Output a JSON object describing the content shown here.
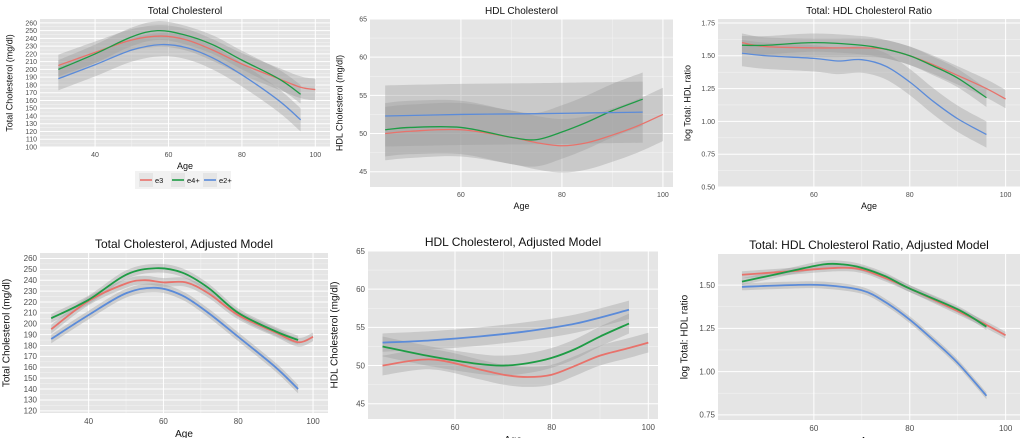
{
  "colors": {
    "panel_bg": "#E5E5E5",
    "grid_major": "#FFFFFF",
    "grid_minor": "#F2F2F2",
    "ribbon": "#9A9A9A",
    "tick_text": "#4D4D4D",
    "title_text": "#111111"
  },
  "legend": {
    "entries": [
      {
        "label": "e3",
        "color": "#E8726B"
      },
      {
        "label": "e4+",
        "color": "#1E9C45"
      },
      {
        "label": "e2+",
        "color": "#5B8BD9"
      }
    ]
  },
  "chart_data": [
    {
      "type": "line",
      "title": "Total Cholesterol",
      "xlabel": "Age",
      "ylabel": "Total Cholesterol (mg/dl)",
      "xlim": [
        25,
        104
      ],
      "ylim": [
        100,
        265
      ],
      "xticks": [
        40,
        60,
        80,
        100
      ],
      "yticks": [
        100,
        110,
        120,
        130,
        140,
        150,
        160,
        170,
        180,
        190,
        200,
        210,
        220,
        230,
        240,
        250,
        260
      ],
      "series": [
        {
          "name": "e3",
          "x": [
            30,
            40,
            50,
            58,
            65,
            72,
            80,
            90,
            96,
            100
          ],
          "values": [
            205,
            222,
            238,
            243,
            238,
            225,
            207,
            188,
            177,
            174
          ],
          "band": 14
        },
        {
          "name": "e4+",
          "x": [
            30,
            40,
            50,
            57,
            64,
            72,
            80,
            90,
            96
          ],
          "values": [
            200,
            220,
            242,
            250,
            245,
            232,
            212,
            188,
            168
          ],
          "band": 12
        },
        {
          "name": "e2+",
          "x": [
            30,
            40,
            50,
            58,
            65,
            72,
            80,
            90,
            96
          ],
          "values": [
            188,
            206,
            225,
            232,
            228,
            215,
            193,
            160,
            135
          ],
          "band": 15
        }
      ]
    },
    {
      "type": "line",
      "title": "HDL Cholesterol",
      "xlabel": "Age",
      "ylabel": "HDL Cholesterol (mg/dl)",
      "xlim": [
        42,
        102
      ],
      "ylim": [
        43,
        65
      ],
      "xticks": [
        60,
        80,
        100
      ],
      "yticks": [
        45,
        50,
        55,
        60,
        65
      ],
      "series": [
        {
          "name": "e3",
          "x": [
            45,
            50,
            60,
            70,
            75,
            80,
            85,
            90,
            95,
            100
          ],
          "values": [
            50,
            50.3,
            50.5,
            49.5,
            48.8,
            48.4,
            48.8,
            49.8,
            51,
            52.5
          ],
          "band": 3.5
        },
        {
          "name": "e4+",
          "x": [
            45,
            50,
            60,
            70,
            75,
            80,
            85,
            90,
            96
          ],
          "values": [
            50.5,
            50.8,
            50.8,
            49.5,
            49.2,
            50.2,
            51.5,
            53,
            54.5
          ],
          "band": 3.5
        },
        {
          "name": "e2+",
          "x": [
            45,
            60,
            75,
            85,
            96
          ],
          "values": [
            52.3,
            52.5,
            52.6,
            52.7,
            52.8
          ],
          "band": 4
        }
      ]
    },
    {
      "type": "line",
      "title": "Total: HDL Cholesterol Ratio",
      "xlabel": "Age",
      "ylabel": "log Total: HDL ratio",
      "xlim": [
        40,
        103
      ],
      "ylim": [
        0.5,
        1.78
      ],
      "xticks": [
        60,
        80,
        100
      ],
      "yticks": [
        0.5,
        0.75,
        1.0,
        1.25,
        1.5,
        1.75
      ],
      "ytick_labels": [
        "0.50",
        "0.75",
        "1.00",
        "1.25",
        "1.50",
        "1.75"
      ],
      "series": [
        {
          "name": "e3",
          "x": [
            45,
            50,
            60,
            70,
            75,
            80,
            85,
            90,
            96,
            100
          ],
          "values": [
            1.6,
            1.57,
            1.56,
            1.56,
            1.55,
            1.5,
            1.43,
            1.35,
            1.25,
            1.17
          ],
          "band": 0.07
        },
        {
          "name": "e4+",
          "x": [
            45,
            50,
            60,
            70,
            75,
            80,
            85,
            90,
            96
          ],
          "values": [
            1.58,
            1.58,
            1.6,
            1.58,
            1.55,
            1.5,
            1.42,
            1.33,
            1.18
          ],
          "band": 0.07
        },
        {
          "name": "e2+",
          "x": [
            45,
            50,
            60,
            65,
            70,
            75,
            80,
            85,
            90,
            96
          ],
          "values": [
            1.52,
            1.5,
            1.48,
            1.46,
            1.47,
            1.42,
            1.3,
            1.15,
            1.02,
            0.9
          ],
          "band": 0.1
        }
      ]
    },
    {
      "type": "line",
      "title": "Total Cholesterol, Adjusted Model",
      "xlabel": "Age",
      "ylabel": "Total Cholesterol (mg/dl)",
      "xlim": [
        27,
        104
      ],
      "ylim": [
        118,
        265
      ],
      "xticks": [
        40,
        60,
        80,
        100
      ],
      "yticks": [
        120,
        130,
        140,
        150,
        160,
        170,
        180,
        190,
        200,
        210,
        220,
        230,
        240,
        250,
        260
      ],
      "series": [
        {
          "name": "e3",
          "x": [
            30,
            40,
            50,
            55,
            60,
            66,
            72,
            80,
            90,
            96,
            100
          ],
          "values": [
            195,
            221,
            237,
            240,
            238,
            238,
            228,
            208,
            192,
            183,
            188
          ],
          "band": 4
        },
        {
          "name": "e4+",
          "x": [
            30,
            40,
            50,
            58,
            65,
            72,
            80,
            90,
            96
          ],
          "values": [
            205,
            222,
            245,
            251,
            247,
            233,
            210,
            193,
            185
          ],
          "band": 4
        },
        {
          "name": "e2+",
          "x": [
            30,
            40,
            50,
            58,
            65,
            72,
            80,
            90,
            96
          ],
          "values": [
            186,
            208,
            228,
            233,
            226,
            210,
            188,
            160,
            140
          ],
          "band": 4
        }
      ]
    },
    {
      "type": "line",
      "title": "HDL Cholesterol, Adjusted Model",
      "xlabel": "Age",
      "ylabel": "HDL Cholesterol (mg/dl)",
      "xlim": [
        42,
        102
      ],
      "ylim": [
        43,
        65
      ],
      "xticks": [
        60,
        80,
        100
      ],
      "yticks": [
        45,
        50,
        55,
        60,
        65
      ],
      "series": [
        {
          "name": "e3",
          "x": [
            45,
            55,
            65,
            70,
            75,
            80,
            85,
            90,
            96,
            100
          ],
          "values": [
            50,
            50.8,
            49.5,
            48.8,
            48.5,
            48.8,
            50,
            51.3,
            52.3,
            53
          ],
          "band": 1.3
        },
        {
          "name": "e4+",
          "x": [
            45,
            55,
            65,
            70,
            75,
            80,
            85,
            90,
            96
          ],
          "values": [
            52.5,
            51.2,
            50.2,
            50,
            50.3,
            51,
            52.2,
            53.8,
            55.5
          ],
          "band": 1.3
        },
        {
          "name": "e2+",
          "x": [
            45,
            55,
            65,
            75,
            85,
            96
          ],
          "values": [
            53,
            53.3,
            53.8,
            54.5,
            55.5,
            57.3
          ],
          "band": 1.2
        }
      ]
    },
    {
      "type": "line",
      "title": "Total: HDL Cholesterol Ratio, Adjusted Model",
      "xlabel": "Age",
      "ylabel": "log Total: HDL ratio",
      "xlim": [
        40,
        103
      ],
      "ylim": [
        0.72,
        1.68
      ],
      "xticks": [
        60,
        80,
        100
      ],
      "yticks": [
        0.75,
        1.0,
        1.25,
        1.5
      ],
      "ytick_labels": [
        "0.75",
        "1.00",
        "1.25",
        "1.50"
      ],
      "series": [
        {
          "name": "e3",
          "x": [
            45,
            55,
            65,
            70,
            75,
            80,
            90,
            96,
            100
          ],
          "values": [
            1.56,
            1.58,
            1.6,
            1.59,
            1.54,
            1.48,
            1.35,
            1.27,
            1.21
          ],
          "band": 0.02
        },
        {
          "name": "e4+",
          "x": [
            45,
            55,
            62,
            66,
            70,
            75,
            80,
            90,
            96
          ],
          "values": [
            1.52,
            1.58,
            1.62,
            1.62,
            1.6,
            1.55,
            1.48,
            1.36,
            1.26
          ],
          "band": 0.02
        },
        {
          "name": "e2+",
          "x": [
            45,
            55,
            62,
            70,
            75,
            80,
            85,
            90,
            96
          ],
          "values": [
            1.49,
            1.5,
            1.5,
            1.47,
            1.4,
            1.3,
            1.18,
            1.05,
            0.86
          ],
          "band": 0.02
        }
      ]
    }
  ]
}
